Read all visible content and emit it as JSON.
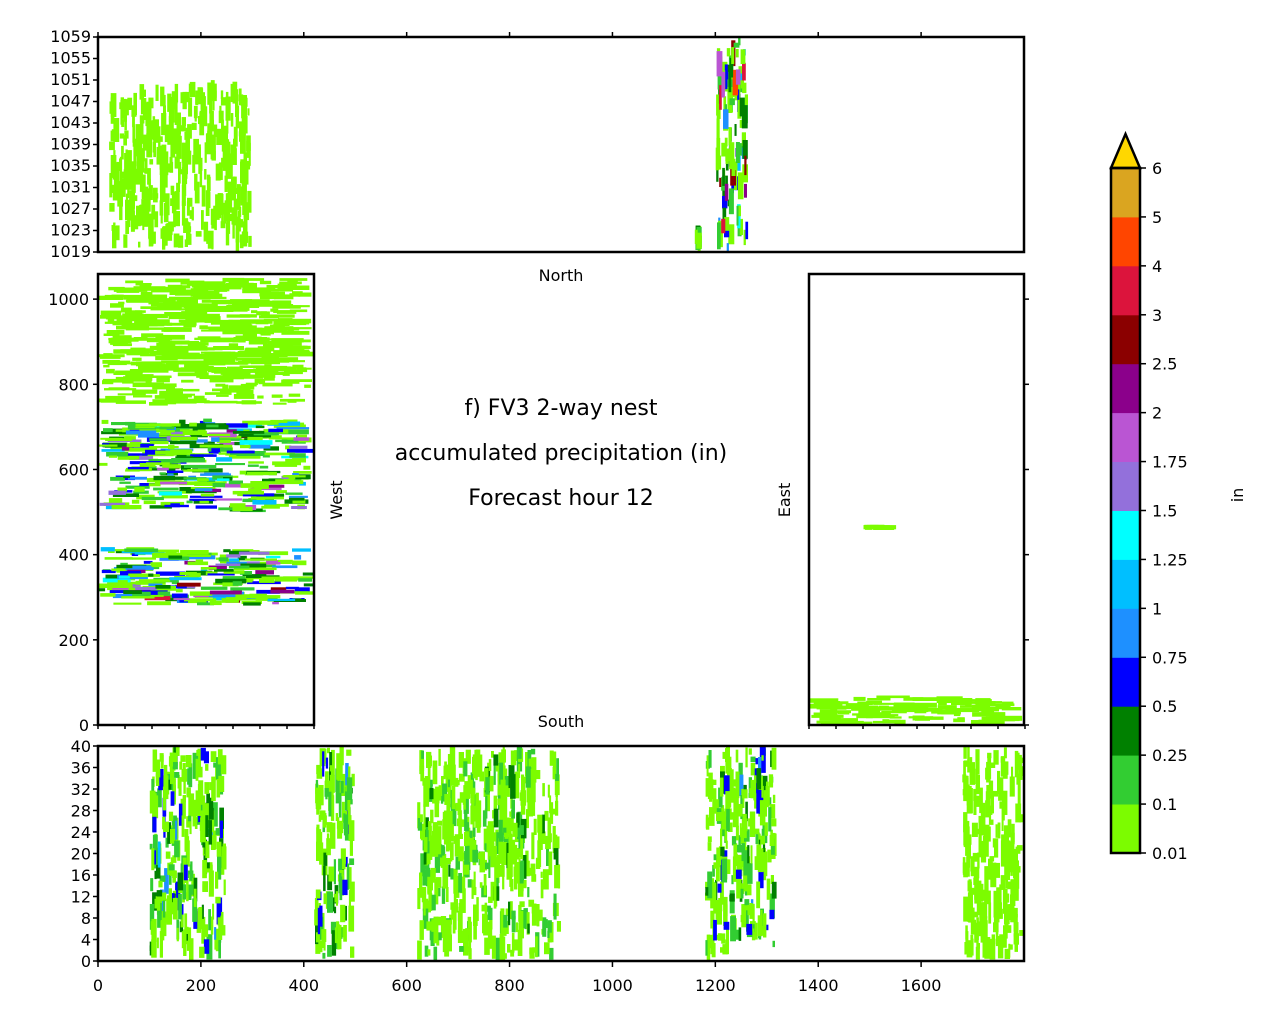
{
  "chart_data": {
    "type": "heatmap",
    "title_lines": [
      "f) FV3 2-way nest",
      "accumulated precipitation (in)",
      "Forecast hour 12"
    ],
    "panel_labels": {
      "north": "North",
      "south": "South",
      "west": "West",
      "east": "East"
    },
    "colorbar": {
      "label": "in",
      "levels": [
        "0.01",
        "0.1",
        "0.25",
        "0.5",
        "0.75",
        "1",
        "1.25",
        "1.5",
        "1.75",
        "2",
        "2.5",
        "3",
        "4",
        "5",
        "6"
      ],
      "colors": [
        "#7cfc00",
        "#32cd32",
        "#008000",
        "#0000ff",
        "#1e90ff",
        "#00bfff",
        "#00ffff",
        "#9370db",
        "#ba55d3",
        "#8b008b",
        "#8b0000",
        "#dc143c",
        "#ff4500",
        "#daa520"
      ],
      "extend_color": "#ffd700"
    },
    "north_panel": {
      "x_range": [
        0,
        1800
      ],
      "y_range": [
        1019,
        1059
      ],
      "y_ticks": [
        "1019",
        "1023",
        "1027",
        "1031",
        "1035",
        "1039",
        "1043",
        "1047",
        "1051",
        "1055",
        "1059"
      ]
    },
    "south_panel": {
      "x_range": [
        0,
        1800
      ],
      "y_range": [
        0,
        40
      ],
      "x_ticks": [
        "0",
        "200",
        "400",
        "600",
        "800",
        "1000",
        "1200",
        "1400",
        "1600"
      ],
      "y_ticks": [
        "0",
        "4",
        "8",
        "12",
        "16",
        "20",
        "24",
        "28",
        "32",
        "36",
        "40"
      ]
    },
    "west_panel": {
      "x_range": [
        0,
        40
      ],
      "y_range": [
        0,
        1059
      ],
      "y_ticks": [
        "0",
        "200",
        "400",
        "600",
        "800",
        "1000"
      ]
    },
    "east_panel": {
      "x_range": [
        1759,
        1799
      ],
      "y_range": [
        0,
        1059
      ]
    },
    "precip_features": [
      {
        "panel": "north",
        "x": [
          20,
          300
        ],
        "y": [
          1019,
          1051
        ],
        "level": 0
      },
      {
        "panel": "north",
        "x": [
          1200,
          1265
        ],
        "y": [
          1019,
          1059
        ],
        "level": 12
      },
      {
        "panel": "north",
        "x": [
          1160,
          1175
        ],
        "y": [
          1019,
          1024
        ],
        "level": 5
      },
      {
        "panel": "south",
        "x": [
          100,
          250
        ],
        "y": [
          0,
          40
        ],
        "level": 5
      },
      {
        "panel": "south",
        "x": [
          420,
          500
        ],
        "y": [
          0,
          40
        ],
        "level": 4
      },
      {
        "panel": "south",
        "x": [
          620,
          900
        ],
        "y": [
          0,
          40
        ],
        "level": 2
      },
      {
        "panel": "south",
        "x": [
          1180,
          1320
        ],
        "y": [
          0,
          40
        ],
        "level": 4
      },
      {
        "panel": "south",
        "x": [
          1680,
          1800
        ],
        "y": [
          0,
          40
        ],
        "level": 0
      },
      {
        "panel": "west",
        "x": [
          0,
          40
        ],
        "y": [
          280,
          420
        ],
        "level": 12
      },
      {
        "panel": "west",
        "x": [
          0,
          40
        ],
        "y": [
          500,
          720
        ],
        "level": 11
      },
      {
        "panel": "west",
        "x": [
          0,
          40
        ],
        "y": [
          750,
          1050
        ],
        "level": 0
      },
      {
        "panel": "east",
        "x": [
          1759,
          1799
        ],
        "y": [
          0,
          70
        ],
        "level": 0
      },
      {
        "panel": "east",
        "x": [
          1769,
          1775
        ],
        "y": [
          466,
          470
        ],
        "level": 0
      }
    ]
  }
}
